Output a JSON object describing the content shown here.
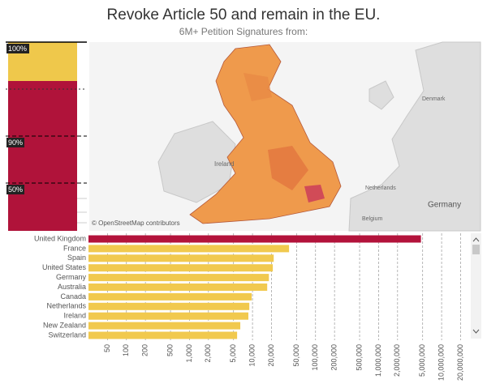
{
  "header": {
    "title": "Revoke Article 50 and remain in the EU.",
    "subtitle": "6M+ Petition Signatures from:"
  },
  "left_panel": {
    "labels": [
      "100%",
      "90%",
      "50%"
    ]
  },
  "map": {
    "labels": [
      "Ireland",
      "Denmark",
      "Netherlands",
      "Belgium",
      "Germany"
    ],
    "attribution": "© OpenStreetMap contributors"
  },
  "chart_data": {
    "type": "bar",
    "orientation": "horizontal",
    "log_scale": true,
    "grid": true,
    "categories": [
      "United Kingdom",
      "France",
      "Spain",
      "United States",
      "Germany",
      "Australia",
      "Canada",
      "Netherlands",
      "Ireland",
      "New Zealand",
      "Switzerland"
    ],
    "values": [
      4700000,
      38000,
      21700,
      21000,
      18200,
      17100,
      9700,
      8900,
      8600,
      6400,
      5700
    ],
    "colors": [
      "#b3133b",
      "#f1c94e",
      "#f1c94e",
      "#f1c94e",
      "#f1c94e",
      "#f1c94e",
      "#f1c94e",
      "#f1c94e",
      "#f1c94e",
      "#f1c94e",
      "#f1c94e"
    ],
    "xlim": [
      25,
      25000000
    ],
    "xticks": [
      50,
      100,
      200,
      500,
      {
        "value": 1000,
        "label": "1,000"
      },
      {
        "value": 2000,
        "label": "2,000"
      },
      {
        "value": 5000,
        "label": "5,000"
      },
      {
        "value": 10000,
        "label": "10,000"
      },
      {
        "value": 20000,
        "label": "20,000"
      },
      {
        "value": 50000,
        "label": "50,000"
      },
      {
        "value": 100000,
        "label": "100,000"
      },
      {
        "value": 200000,
        "label": "200,000"
      },
      {
        "value": 500000,
        "label": "500,000"
      },
      {
        "value": 1000000,
        "label": "1,000,000"
      },
      {
        "value": 2000000,
        "label": "2,000,000"
      },
      {
        "value": 5000000,
        "label": "5,000,000"
      },
      {
        "value": 10000000,
        "label": "10,000,000"
      },
      {
        "value": 20000000,
        "label": "20,000,000"
      }
    ]
  }
}
